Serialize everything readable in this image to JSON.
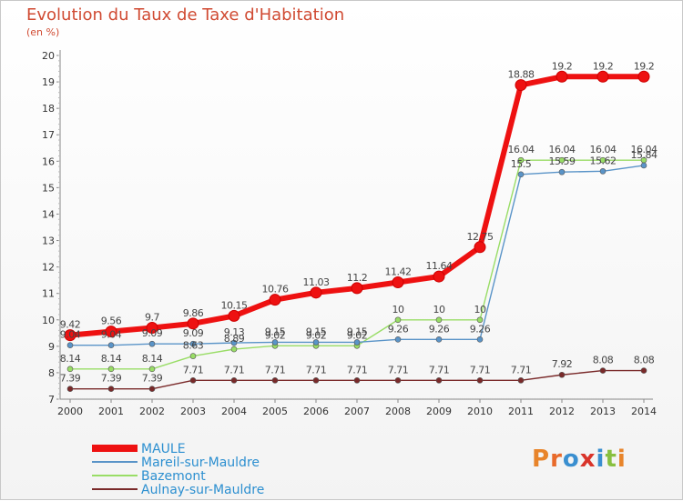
{
  "title": "Evolution du Taux de Taxe d'Habitation",
  "unit": "(en %)",
  "logo": "Proxiti",
  "chart_data": {
    "type": "line",
    "title": "Evolution du Taux de Taxe d'Habitation",
    "ylabel": "(en %)",
    "ylim": [
      7,
      20
    ],
    "y_ticks": [
      7,
      8,
      9,
      10,
      11,
      12,
      13,
      14,
      15,
      16,
      17,
      18,
      19,
      20
    ],
    "x": [
      "2000",
      "2001",
      "2002",
      "2003",
      "2004",
      "2005",
      "2006",
      "2007",
      "2008",
      "2009",
      "2010",
      "2011",
      "2012",
      "2013",
      "2014"
    ],
    "grid": false,
    "legend_position": "bottom-left",
    "series": [
      {
        "name": "MAULE",
        "color": "#ee1111",
        "values": [
          9.42,
          9.56,
          9.7,
          9.86,
          10.15,
          10.76,
          11.03,
          11.2,
          11.42,
          11.64,
          12.75,
          18.88,
          19.2,
          19.2,
          19.2
        ]
      },
      {
        "name": "Mareil-sur-Mauldre",
        "color": "#5a94c8",
        "values": [
          9.04,
          9.04,
          9.09,
          9.09,
          9.13,
          9.15,
          9.15,
          9.15,
          9.26,
          9.26,
          9.26,
          15.5,
          15.59,
          15.62,
          15.84
        ]
      },
      {
        "name": "Bazemont",
        "color": "#99dd66",
        "values": [
          8.14,
          8.14,
          8.14,
          8.63,
          8.89,
          9.02,
          9.02,
          9.02,
          10,
          10,
          10,
          16.04,
          16.04,
          16.04,
          16.04
        ]
      },
      {
        "name": "Aulnay-sur-Mauldre",
        "color": "#7a2a2a",
        "values": [
          7.39,
          7.39,
          7.39,
          7.71,
          7.71,
          7.71,
          7.71,
          7.71,
          7.71,
          7.71,
          7.71,
          7.71,
          7.92,
          8.08,
          8.08
        ]
      }
    ]
  }
}
